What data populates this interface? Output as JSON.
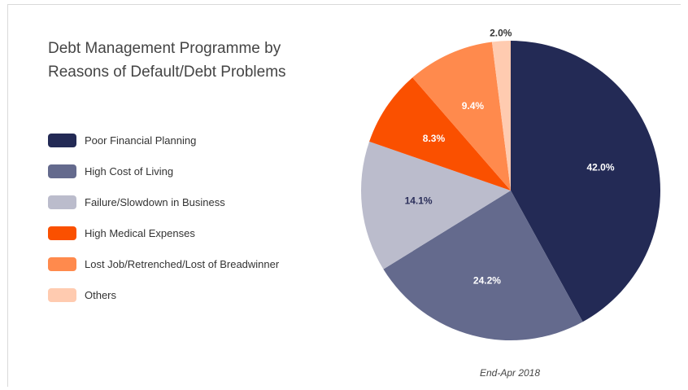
{
  "chart_data": {
    "type": "pie",
    "title": "Debt Management Programme by Reasons of Default/Debt Problems",
    "caption": "End-Apr 2018",
    "legend_position": "left",
    "slices": [
      {
        "label": "Poor Financial Planning",
        "value": 42.0,
        "display": "42.0%",
        "color": "#232a55",
        "text_color": "#ffffff"
      },
      {
        "label": "High Cost of Living",
        "value": 24.2,
        "display": "24.2%",
        "color": "#646a8d",
        "text_color": "#ffffff"
      },
      {
        "label": "Failure/Slowdown in Business",
        "value": 14.1,
        "display": "14.1%",
        "color": "#bbbccc",
        "text_color": "#2b2f5a"
      },
      {
        "label": "High Medical Expenses",
        "value": 8.3,
        "display": "8.3%",
        "color": "#fa5000",
        "text_color": "#ffffff"
      },
      {
        "label": "Lost Job/Retrenched/Lost of Breadwinner",
        "value": 9.4,
        "display": "9.4%",
        "color": "#ff8a4d",
        "text_color": "#ffffff"
      },
      {
        "label": "Others",
        "value": 2.0,
        "display": "2.0%",
        "color": "#ffcbb0",
        "text_color": "#333333"
      }
    ]
  }
}
